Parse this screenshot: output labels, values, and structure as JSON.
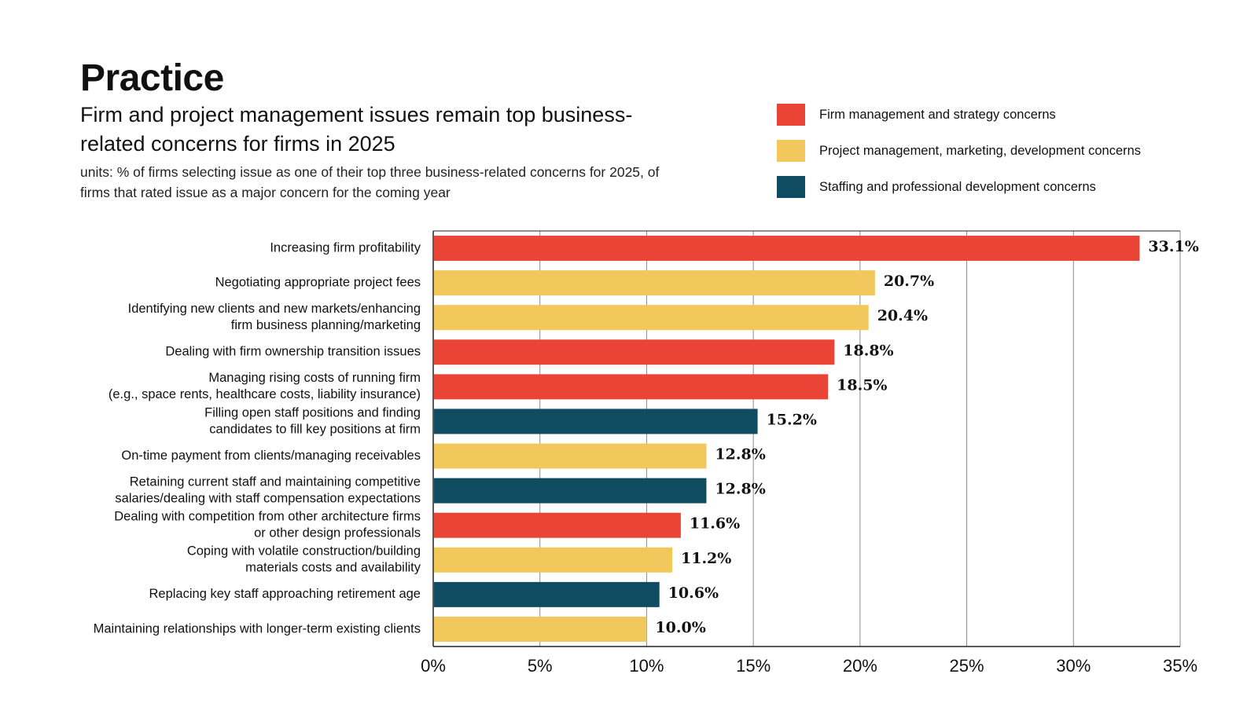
{
  "header": {
    "title": "Practice",
    "subtitle": "Firm and project management issues remain top business-related concerns for firms in 2025",
    "units": "units: % of firms selecting issue as one of their top three business-related concerns for 2025, of firms that rated issue as a major concern for the coming year"
  },
  "legend": [
    {
      "label": "Firm management and strategy concerns",
      "color": "#E94436"
    },
    {
      "label": "Project management, marketing, development concerns",
      "color": "#F2C75C"
    },
    {
      "label": "Staffing and professional development concerns",
      "color": "#0F4C61"
    }
  ],
  "chart_data": {
    "type": "bar",
    "orientation": "horizontal",
    "title": "Firm and project management issues remain top business-related concerns for firms in 2025",
    "xlabel": "",
    "ylabel": "",
    "xlim": [
      0,
      35
    ],
    "xticks": [
      "0%",
      "5%",
      "10%",
      "15%",
      "20%",
      "25%",
      "30%",
      "35%"
    ],
    "xtick_values": [
      0,
      5,
      10,
      15,
      20,
      25,
      30,
      35
    ],
    "grid": true,
    "bars": [
      {
        "label": [
          "Increasing firm profitability"
        ],
        "value": 33.1,
        "value_label": "33.1%",
        "group": 0
      },
      {
        "label": [
          "Negotiating appropriate project fees"
        ],
        "value": 20.7,
        "value_label": "20.7%",
        "group": 1
      },
      {
        "label": [
          "Identifying new clients and new markets/enhancing",
          "firm business planning/marketing"
        ],
        "value": 20.4,
        "value_label": "20.4%",
        "group": 1
      },
      {
        "label": [
          "Dealing with firm ownership transition issues"
        ],
        "value": 18.8,
        "value_label": "18.8%",
        "group": 0
      },
      {
        "label": [
          "Managing rising costs of running firm",
          "(e.g., space rents, healthcare costs, liability insurance)"
        ],
        "value": 18.5,
        "value_label": "18.5%",
        "group": 0
      },
      {
        "label": [
          "Filling open staff positions and finding",
          "candidates to fill key positions at firm"
        ],
        "value": 15.2,
        "value_label": "15.2%",
        "group": 2
      },
      {
        "label": [
          "On-time payment from clients/managing receivables"
        ],
        "value": 12.8,
        "value_label": "12.8%",
        "group": 1
      },
      {
        "label": [
          "Retaining current staff and maintaining competitive",
          "salaries/dealing with staff compensation expectations"
        ],
        "value": 12.8,
        "value_label": "12.8%",
        "group": 2
      },
      {
        "label": [
          "Dealing with competition from other architecture firms",
          "or other design professionals"
        ],
        "value": 11.6,
        "value_label": "11.6%",
        "group": 0
      },
      {
        "label": [
          "Coping with volatile construction/building",
          "materials costs and availability"
        ],
        "value": 11.2,
        "value_label": "11.2%",
        "group": 1
      },
      {
        "label": [
          "Replacing key staff approaching retirement age"
        ],
        "value": 10.6,
        "value_label": "10.6%",
        "group": 2
      },
      {
        "label": [
          "Maintaining relationships with longer-term existing clients"
        ],
        "value": 10.0,
        "value_label": "10.0%",
        "group": 1
      }
    ]
  }
}
